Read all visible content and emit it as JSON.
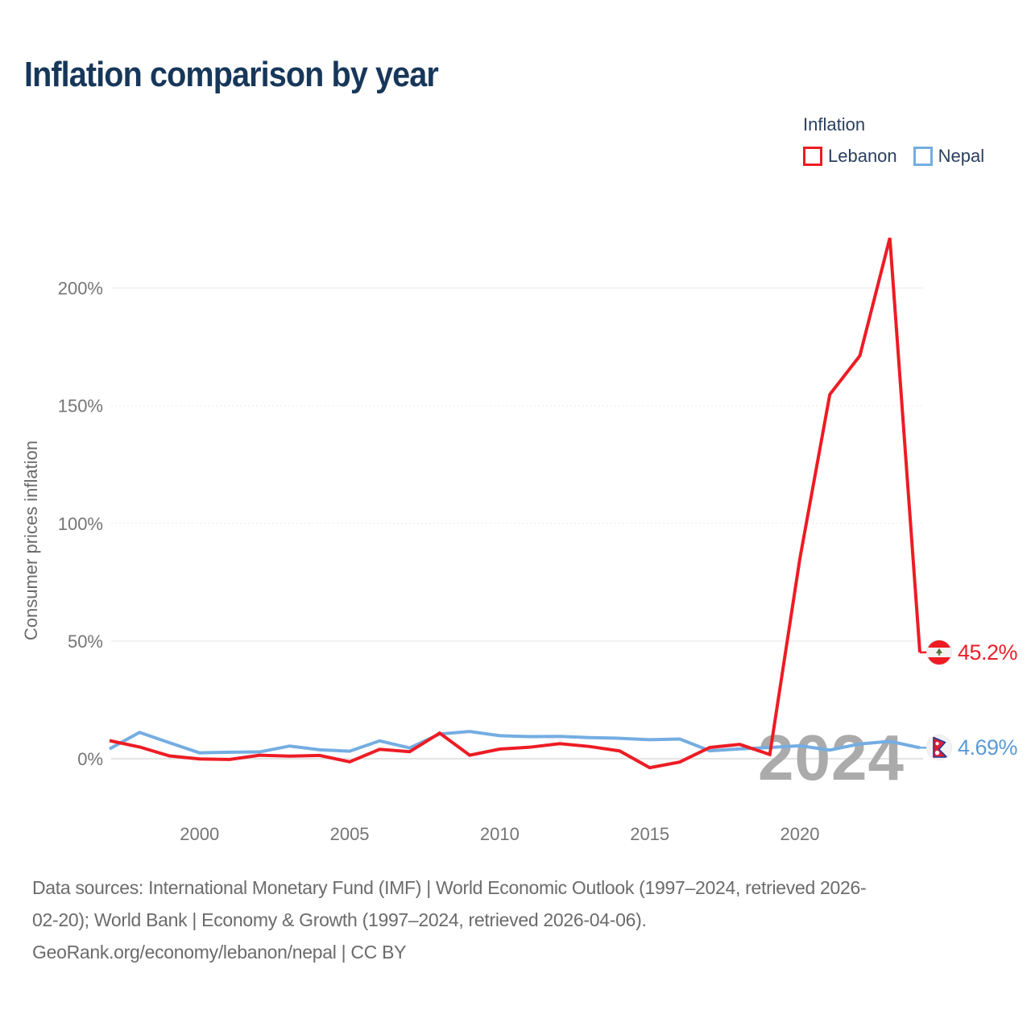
{
  "title": "Inflation comparison by year",
  "legend": {
    "title": "Inflation",
    "items": [
      {
        "label": "Lebanon",
        "color": "#ed1c24"
      },
      {
        "label": "Nepal",
        "color": "#74ade2"
      }
    ]
  },
  "y_axis": {
    "title": "Consumer prices inflation",
    "tick_values": [
      0,
      50,
      100,
      150,
      200
    ],
    "tick_labels": [
      "0%",
      "50%",
      "100%",
      "150%",
      "200%"
    ]
  },
  "x_axis": {
    "tick_labels": [
      "2000",
      "2005",
      "2010",
      "2015",
      "2020"
    ]
  },
  "watermark": "2024",
  "end_labels": [
    {
      "series": "Lebanon",
      "value_label": "45.2%",
      "flag": "lebanon-flag",
      "color": "#e8212c"
    },
    {
      "series": "Nepal",
      "value_label": "4.69%",
      "flag": "nepal-flag",
      "color": "#5b9bd5"
    }
  ],
  "footer": {
    "lines": [
      "Data sources: International Monetary Fund (IMF) | World Economic Outlook (1997–2024, retrieved 2026-",
      "02-20); World Bank | Economy & Growth (1997–2024, retrieved 2026-04-06).",
      "GeoRank.org/economy/lebanon/nepal | CC BY"
    ]
  },
  "chart_data": {
    "type": "line",
    "title": "Inflation comparison by year",
    "ylabel": "Consumer prices inflation",
    "ylim": [
      -15,
      235
    ],
    "yticks": [
      0,
      50,
      100,
      150,
      200
    ],
    "grid": "horizontal",
    "legend_position": "top-right",
    "x": [
      1997,
      1998,
      1999,
      2000,
      2001,
      2002,
      2003,
      2004,
      2005,
      2006,
      2007,
      2008,
      2009,
      2010,
      2011,
      2012,
      2013,
      2014,
      2015,
      2016,
      2017,
      2018,
      2019,
      2020,
      2021,
      2022,
      2023,
      2024
    ],
    "series": [
      {
        "name": "Lebanon",
        "color": "#ed1c24",
        "end_value_label": "45.2%",
        "values": [
          7.7,
          5.0,
          1.2,
          -0.1,
          -0.3,
          1.5,
          1.1,
          1.4,
          -1.3,
          4.0,
          3.0,
          10.9,
          1.5,
          4.1,
          4.9,
          6.4,
          5.2,
          3.3,
          -3.8,
          -1.4,
          4.8,
          6.1,
          1.8,
          84.9,
          154.8,
          171.2,
          221.3,
          45.2
        ]
      },
      {
        "name": "Nepal",
        "color": "#74ade2",
        "end_value_label": "4.69%",
        "values": [
          4.2,
          11.2,
          6.8,
          2.5,
          2.8,
          2.9,
          5.4,
          3.8,
          3.2,
          7.6,
          4.6,
          10.5,
          11.6,
          9.8,
          9.4,
          9.5,
          9.0,
          8.7,
          8.1,
          8.4,
          3.4,
          4.2,
          4.8,
          5.5,
          3.7,
          6.3,
          7.4,
          4.69
        ]
      }
    ]
  }
}
